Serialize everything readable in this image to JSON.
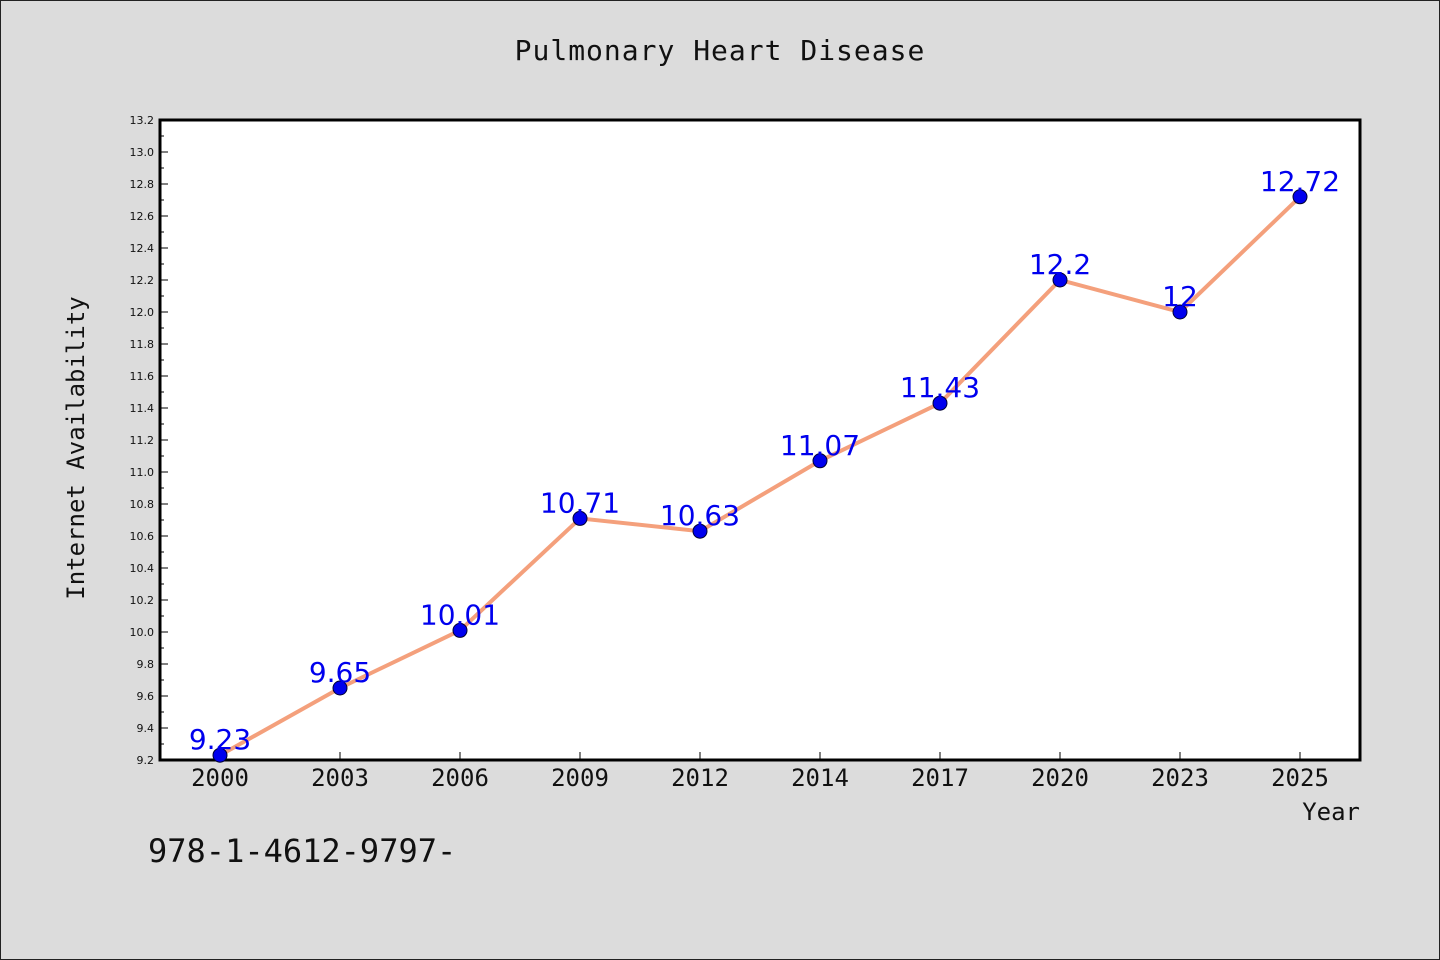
{
  "chart_data": {
    "type": "line",
    "title": "Pulmonary Heart Disease",
    "xlabel": "Year",
    "ylabel": "Internet Availability",
    "categories": [
      "2000",
      "2003",
      "2006",
      "2009",
      "2012",
      "2014",
      "2017",
      "2020",
      "2023",
      "2025"
    ],
    "series": [
      {
        "values": [
          9.23,
          9.65,
          10.01,
          10.71,
          10.63,
          11.07,
          11.43,
          12.2,
          12,
          12.72
        ],
        "data_labels": [
          "9.23",
          "9.65",
          "10.01",
          "10.71",
          "10.63",
          "11.07",
          "11.43",
          "12.2",
          "12",
          "12.72"
        ]
      }
    ],
    "ylim": [
      9.2,
      13.2
    ],
    "yticks": [
      "9.2",
      "9.4",
      "9.6",
      "9.8",
      "10.0",
      "10.2",
      "10.4",
      "10.6",
      "10.8",
      "11.0",
      "11.2",
      "11.4",
      "11.6",
      "11.8",
      "12.0",
      "12.2",
      "12.4",
      "12.6",
      "12.8",
      "13.0",
      "13.2"
    ],
    "grid": false,
    "colors": {
      "line": "#f4a07c",
      "marker": "#0000ee",
      "label": "#0000ee"
    }
  },
  "footer": {
    "code": "978-1-4612-9797-"
  }
}
